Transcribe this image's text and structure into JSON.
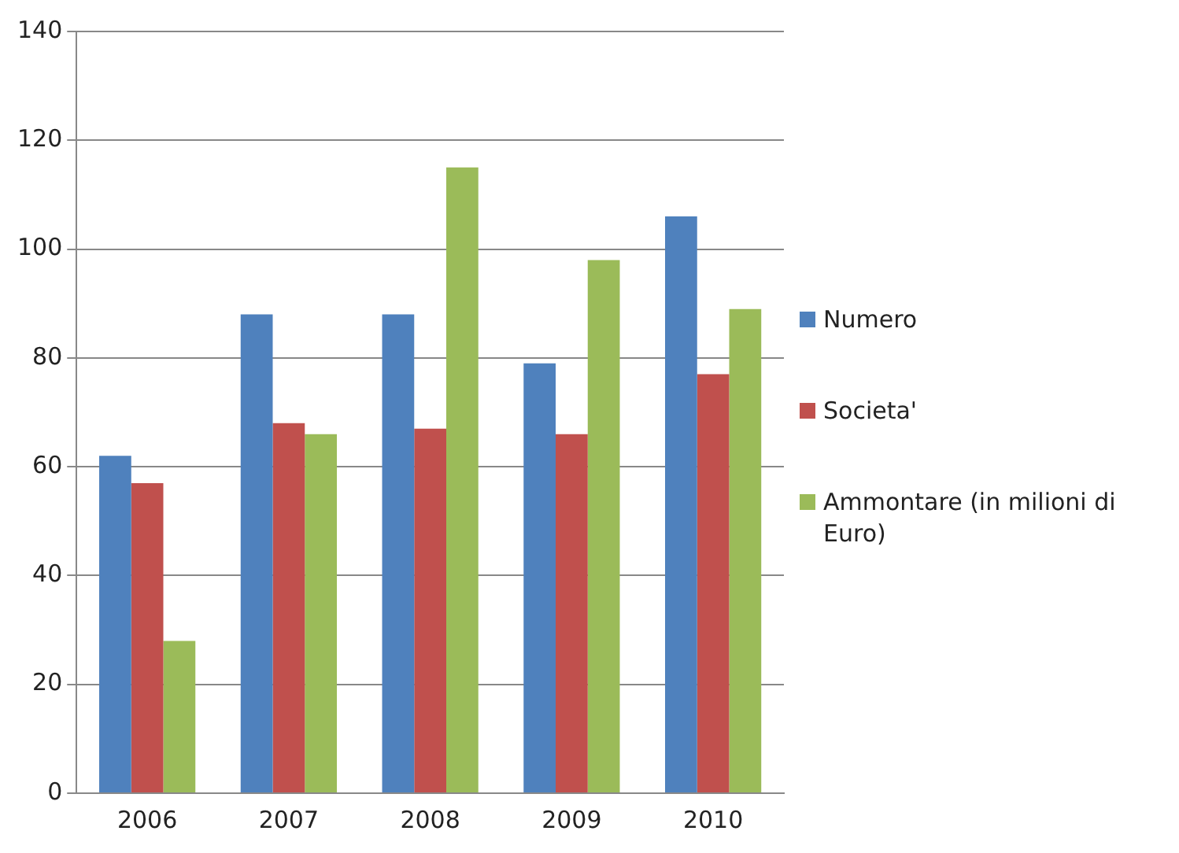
{
  "chart_data": {
    "type": "bar",
    "categories": [
      "2006",
      "2007",
      "2008",
      "2009",
      "2010"
    ],
    "series": [
      {
        "name": "Numero",
        "color": "#4f81bd",
        "values": [
          62,
          88,
          88,
          79,
          106
        ]
      },
      {
        "name": "Societa'",
        "color": "#c0504d",
        "values": [
          57,
          68,
          67,
          66,
          77
        ]
      },
      {
        "name": "Ammontare (in milioni di Euro)",
        "color": "#9bbb59",
        "values": [
          28,
          66,
          115,
          98,
          89
        ]
      }
    ],
    "ylim": [
      0,
      140
    ],
    "yticks": [
      0,
      20,
      40,
      60,
      80,
      100,
      120,
      140
    ],
    "grid": "y",
    "legend": "right"
  }
}
